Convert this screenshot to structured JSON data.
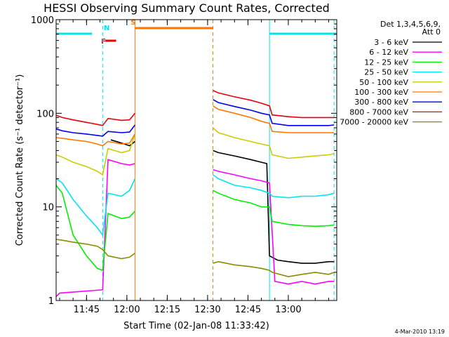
{
  "chart_data": {
    "type": "line",
    "title": "HESSI Observing Summary Count Rates, Corrected",
    "xlabel": "Start Time (02-Jan-08 11:33:42)",
    "ylabel": "Corrected Count Rate (s⁻¹ detector⁻¹)",
    "y_scale": "log",
    "ylim": [
      1,
      1000
    ],
    "xlim": [
      "11:33:42",
      "13:18:00"
    ],
    "x_ticks": [
      "11:45",
      "12:00",
      "12:15",
      "12:30",
      "12:45",
      "13:00"
    ],
    "y_ticks": [
      "1",
      "10",
      "100",
      "1000"
    ],
    "legend_header": [
      "Det 1,3,4,5,6,9,",
      "Att 0"
    ],
    "legend_position": "right",
    "footer": "4-Mar-2010 13:19",
    "flags": [
      {
        "label": "",
        "color": "#00e5ee",
        "start": "11:33:42",
        "end": "11:47:00"
      },
      {
        "label": "N",
        "color": "#00e5ee",
        "start": "11:53:00",
        "end": "11:53:00"
      },
      {
        "label": "F",
        "color": "#e8000b",
        "start": "11:52:00",
        "end": "11:56:00"
      },
      {
        "label": "S",
        "color": "#ff7700",
        "start": "12:03:00",
        "end": "12:32:00"
      },
      {
        "label": "",
        "color": "#00e5ee",
        "start": "12:53:00",
        "end": "13:18:00"
      }
    ],
    "vertical_lines": [
      {
        "time": "11:51:00",
        "color": "#00e5ee",
        "dashed": true
      },
      {
        "time": "12:03:00",
        "color": "#ff7700",
        "dashed": false
      },
      {
        "time": "12:32:00",
        "color": "#ff7700",
        "dashed": true
      },
      {
        "time": "12:53:00",
        "color": "#00e5ee",
        "dashed": false
      },
      {
        "time": "13:17:00",
        "color": "#00e5ee",
        "dashed": true
      }
    ],
    "series": [
      {
        "name": "3 - 6 keV",
        "color": "#000000",
        "x": [
          "11:54",
          "11:58",
          "12:01",
          "12:03",
          "12:32",
          "12:34",
          "12:40",
          "12:46",
          "12:50",
          "12:52",
          "12:53",
          "12:56",
          "13:00",
          "13:05",
          "13:10",
          "13:15",
          "13:17"
        ],
        "values": [
          52,
          48,
          45,
          50,
          40,
          38,
          35,
          32,
          30,
          29,
          3,
          2.7,
          2.6,
          2.5,
          2.5,
          2.6,
          2.6
        ]
      },
      {
        "name": "6 - 12 keV",
        "color": "#ff00ff",
        "x": [
          "11:33:42",
          "11:35",
          "11:51",
          "11:53",
          "11:58",
          "12:01",
          "12:03",
          "12:32",
          "12:34",
          "12:40",
          "12:46",
          "12:50",
          "12:53",
          "12:55",
          "13:00",
          "13:05",
          "13:10",
          "13:15",
          "13:17"
        ],
        "values": [
          1.1,
          1.2,
          1.3,
          32,
          29,
          28,
          29,
          25,
          24,
          22,
          20,
          19,
          18,
          1.6,
          1.5,
          1.6,
          1.5,
          1.6,
          1.6
        ]
      },
      {
        "name": "12 - 25 keV",
        "color": "#00ee00",
        "x": [
          "11:33:42",
          "11:36",
          "11:40",
          "11:45",
          "11:49",
          "11:51",
          "11:53",
          "11:58",
          "12:01",
          "12:03",
          "12:32",
          "12:34",
          "12:40",
          "12:46",
          "12:50",
          "12:53",
          "12:54",
          "13:00",
          "13:05",
          "13:10",
          "13:15",
          "13:17"
        ],
        "values": [
          17,
          14,
          5,
          3.0,
          2.2,
          2.1,
          8.5,
          7.5,
          7.8,
          9,
          15,
          14,
          12,
          11,
          10,
          10,
          7,
          6.5,
          6.3,
          6.2,
          6.3,
          6.4
        ]
      },
      {
        "name": "25 - 50 keV",
        "color": "#00e5ee",
        "x": [
          "11:33:42",
          "11:36",
          "11:40",
          "11:45",
          "11:49",
          "11:51",
          "11:53",
          "11:58",
          "12:01",
          "12:03",
          "12:32",
          "12:34",
          "12:40",
          "12:46",
          "12:50",
          "12:53",
          "12:54",
          "13:00",
          "13:05",
          "13:10",
          "13:15",
          "13:17"
        ],
        "values": [
          20,
          18,
          12,
          8,
          6,
          5,
          14,
          13,
          15,
          20,
          22,
          20,
          17,
          16,
          15,
          14,
          13,
          12.5,
          13,
          13,
          13.5,
          14
        ]
      },
      {
        "name": "50 - 100 keV",
        "color": "#cccc00",
        "x": [
          "11:33:42",
          "11:36",
          "11:40",
          "11:45",
          "11:49",
          "11:51",
          "11:53",
          "11:58",
          "12:01",
          "12:03",
          "12:32",
          "12:34",
          "12:40",
          "12:46",
          "12:50",
          "12:53",
          "12:54",
          "13:00",
          "13:05",
          "13:10",
          "13:15",
          "13:17"
        ],
        "values": [
          36,
          34,
          30,
          27,
          24,
          22,
          42,
          38,
          40,
          60,
          70,
          62,
          55,
          50,
          47,
          45,
          36,
          33,
          34,
          35,
          36,
          37
        ]
      },
      {
        "name": "100 - 300 keV",
        "color": "#ff7700",
        "x": [
          "11:33:42",
          "11:36",
          "11:40",
          "11:45",
          "11:49",
          "11:51",
          "11:53",
          "11:58",
          "12:01",
          "12:03",
          "12:32",
          "12:34",
          "12:40",
          "12:46",
          "12:50",
          "12:53",
          "12:54",
          "13:00",
          "13:05",
          "13:10",
          "13:15",
          "13:17"
        ],
        "values": [
          55,
          54,
          52,
          50,
          47,
          45,
          50,
          47,
          48,
          60,
          120,
          110,
          100,
          90,
          82,
          78,
          64,
          62,
          62,
          62,
          62,
          62
        ]
      },
      {
        "name": "300 - 800 keV",
        "color": "#0000ee",
        "x": [
          "11:33:42",
          "11:36",
          "11:40",
          "11:45",
          "11:49",
          "11:51",
          "11:53",
          "11:58",
          "12:01",
          "12:03",
          "12:32",
          "12:34",
          "12:40",
          "12:46",
          "12:50",
          "12:53",
          "12:54",
          "13:00",
          "13:05",
          "13:10",
          "13:15",
          "13:17"
        ],
        "values": [
          68,
          65,
          62,
          60,
          58,
          57,
          64,
          62,
          63,
          75,
          140,
          130,
          118,
          108,
          100,
          96,
          78,
          74,
          74,
          74,
          74,
          75
        ]
      },
      {
        "name": "800 - 7000 keV",
        "color": "#e8000b",
        "x": [
          "11:33:42",
          "11:36",
          "11:40",
          "11:45",
          "11:49",
          "11:51",
          "11:53",
          "11:58",
          "12:01",
          "12:03",
          "12:32",
          "12:34",
          "12:40",
          "12:46",
          "12:50",
          "12:53",
          "12:54",
          "13:00",
          "13:05",
          "13:10",
          "13:15",
          "13:17"
        ],
        "values": [
          95,
          90,
          85,
          80,
          76,
          74,
          88,
          84,
          85,
          100,
          175,
          165,
          150,
          138,
          128,
          120,
          96,
          92,
          90,
          90,
          90,
          90
        ]
      },
      {
        "name": "7000 - 20000 keV",
        "color": "#8b8b00",
        "x": [
          "11:33:42",
          "11:36",
          "11:40",
          "11:45",
          "11:49",
          "11:51",
          "11:53",
          "11:58",
          "12:01",
          "12:03",
          "12:32",
          "12:34",
          "12:40",
          "12:46",
          "12:50",
          "12:53",
          "12:54",
          "13:00",
          "13:05",
          "13:10",
          "13:15",
          "13:17"
        ],
        "values": [
          4.5,
          4.4,
          4.2,
          4.0,
          3.8,
          3.5,
          3.0,
          2.8,
          2.9,
          3.2,
          2.5,
          2.6,
          2.4,
          2.3,
          2.2,
          2.1,
          2.0,
          1.8,
          1.9,
          2.0,
          1.9,
          2.0
        ]
      }
    ]
  }
}
